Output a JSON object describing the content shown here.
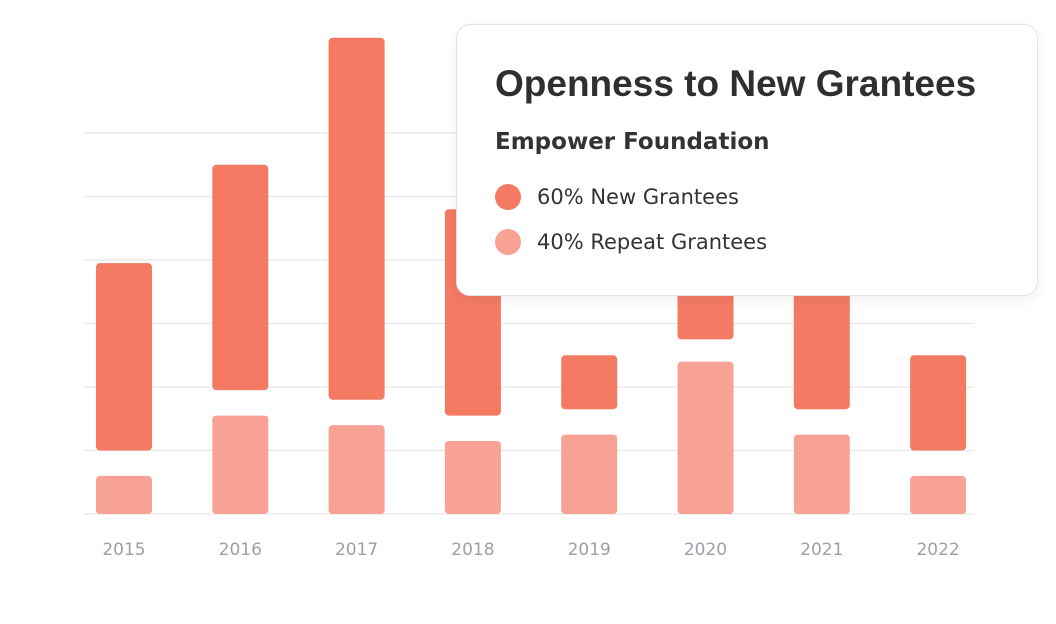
{
  "chart_data": {
    "type": "bar",
    "stacked": false,
    "categories": [
      "2015",
      "2016",
      "2017",
      "2018",
      "2019",
      "2020",
      "2021",
      "2022"
    ],
    "series": [
      {
        "name": "Repeat Grantees",
        "color": "#f7a295",
        "ranges": [
          [
            0,
            0.6
          ],
          [
            0,
            1.55
          ],
          [
            0,
            1.4
          ],
          [
            0,
            1.15
          ],
          [
            0,
            1.25
          ],
          [
            0,
            2.4
          ],
          [
            0,
            1.25
          ],
          [
            0,
            0.6
          ]
        ]
      },
      {
        "name": "New Grantees",
        "color": "#f47a64",
        "ranges": [
          [
            1,
            3.95
          ],
          [
            1.95,
            5.5
          ],
          [
            1.8,
            7.5
          ],
          [
            1.55,
            4.8
          ],
          [
            1.65,
            2.5
          ],
          [
            2.75,
            3.8
          ],
          [
            1.65,
            5.2
          ],
          [
            1,
            2.5
          ]
        ]
      }
    ],
    "ylim": [
      0,
      7.5
    ],
    "grid": true,
    "gridlines": [
      0,
      1,
      2,
      3,
      4,
      5,
      6
    ],
    "x_tick_color": "#9aa0a6"
  },
  "tooltip": {
    "title": "Openness to New Grantees",
    "subtitle": "Empower Foundation",
    "items": [
      {
        "label": "60% New Grantees",
        "color": "#f47a64"
      },
      {
        "label": "40% Repeat Grantees",
        "color": "#f7a295"
      }
    ]
  }
}
